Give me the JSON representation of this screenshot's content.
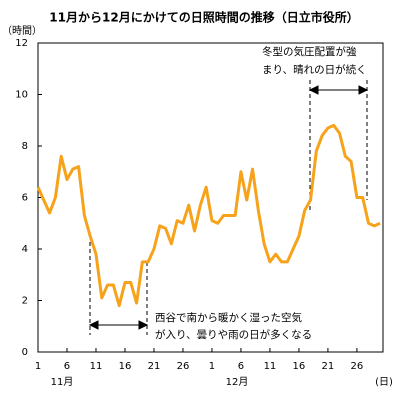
{
  "chart_data": {
    "type": "line",
    "title": "11月から12月にかけての日照時間の推移（日立市役所）",
    "y_label": "（時間）",
    "x_label": "(日)",
    "month_labels": [
      "11月",
      "12月"
    ],
    "x": [
      1,
      2,
      3,
      4,
      5,
      6,
      7,
      8,
      9,
      10,
      11,
      12,
      13,
      14,
      15,
      16,
      17,
      18,
      19,
      20,
      21,
      22,
      23,
      24,
      25,
      26,
      27,
      28,
      29,
      30,
      31,
      32,
      33,
      34,
      35,
      36,
      37,
      38,
      39,
      40,
      41,
      42,
      43,
      44,
      45,
      46,
      47,
      48,
      49,
      50,
      51,
      52,
      53,
      54,
      55,
      56,
      57,
      58,
      59,
      60
    ],
    "series": [
      {
        "color": "#f7a21b",
        "values": [
          6.4,
          5.9,
          5.4,
          6.0,
          7.6,
          6.7,
          7.1,
          7.2,
          5.3,
          4.5,
          3.8,
          2.1,
          2.6,
          2.6,
          1.8,
          2.7,
          2.7,
          1.9,
          3.5,
          3.5,
          4.0,
          4.9,
          4.8,
          4.2,
          5.1,
          5.0,
          5.7,
          4.7,
          5.7,
          6.4,
          5.1,
          5.0,
          5.3,
          5.3,
          5.3,
          7.0,
          5.9,
          7.1,
          5.5,
          4.2,
          3.5,
          3.8,
          3.5,
          3.5,
          4.0,
          4.5,
          5.5,
          5.9,
          7.8,
          8.4,
          8.7,
          8.8,
          8.5,
          7.6,
          7.4,
          6.0,
          6.0,
          5.0,
          4.9,
          5.0
        ]
      }
    ],
    "xlim": [
      1,
      60.5
    ],
    "xticks": [
      1,
      6,
      11,
      16,
      21,
      26,
      {
        "value": 31,
        "label": "1"
      },
      {
        "value": 36,
        "label": "6"
      },
      {
        "value": 41,
        "label": "11"
      },
      {
        "value": 46,
        "label": "16"
      },
      {
        "value": 51,
        "label": "21"
      },
      {
        "value": 56,
        "label": "26"
      }
    ],
    "ylim": [
      0,
      12
    ],
    "yticks": [
      0,
      2,
      4,
      6,
      8,
      10,
      12
    ],
    "annotations": [
      {
        "lines": [
          "冬型の気圧配置が強",
          "まり、晴れの日が続く"
        ]
      },
      {
        "lines": [
          "西谷で南から暖かく湿った空気",
          "が入り、曇りや雨の日が多くなる"
        ]
      }
    ]
  }
}
